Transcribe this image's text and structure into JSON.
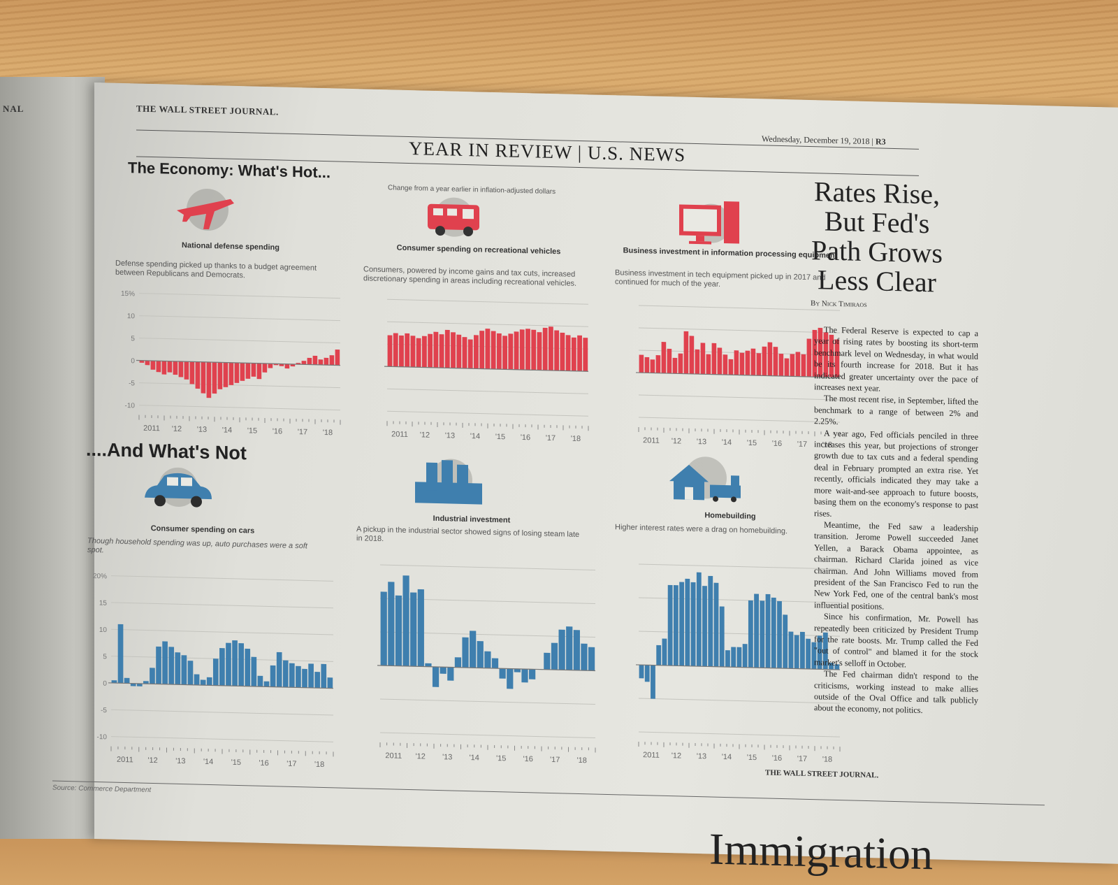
{
  "left_page": {
    "masthead": "NAL"
  },
  "page": {
    "paper": "THE WALL STREET JOURNAL.",
    "date": "Wednesday, December 19, 2018",
    "page_num": "R3",
    "section": "YEAR IN REVIEW | U.S. NEWS",
    "hot_title": "The Economy: What's Hot...",
    "not_title": "....And What's Not",
    "chart_note": "Change from a year earlier in inflation-adjusted dollars",
    "source": "Source: Commerce Department",
    "credit": "THE WALL STREET JOURNAL.",
    "next_headline": "Immigration"
  },
  "colors": {
    "hot": "#e0414e",
    "not": "#3f7fae",
    "paper": "#e2e2dc"
  },
  "panels": [
    {
      "id": "defense",
      "icon": "airplane-icon",
      "title": "National defense spending",
      "desc": "Defense spending picked up thanks to a budget agreement between Republicans and Democrats."
    },
    {
      "id": "rv",
      "icon": "rv-icon",
      "title": "Consumer spending on recreational vehicles",
      "desc": "Consumers, powered by income gains and tax cuts, increased discretionary spending in areas including recreational vehicles."
    },
    {
      "id": "tech",
      "icon": "computer-icon",
      "title": "Business investment in information processing equipment",
      "desc": "Business investment in tech equipment picked up in 2017 and continued for much of the year."
    },
    {
      "id": "cars",
      "icon": "car-icon",
      "title": "Consumer spending on cars",
      "desc": "Though household spending was up, auto purchases were a soft spot."
    },
    {
      "id": "industrial",
      "icon": "factory-icon",
      "title": "Industrial investment",
      "desc": "A pickup in the industrial sector showed signs of losing steam late in 2018."
    },
    {
      "id": "home",
      "icon": "house-icon",
      "title": "Homebuilding",
      "desc": "Higher interest rates were a drag on homebuilding."
    }
  ],
  "chart_data": [
    {
      "type": "bar",
      "title": "National defense spending",
      "color": "#e0414e",
      "yticks": [
        "15%",
        "10",
        "5",
        "0",
        "-5",
        "-10"
      ],
      "ylim": [
        -10,
        15
      ],
      "xticks": [
        "2011",
        "'12",
        "'13",
        "'14",
        "'15",
        "'16",
        "'17",
        "'18"
      ],
      "values": [
        -0.5,
        -1,
        -2,
        -2.5,
        -3,
        -2.5,
        -3,
        -3.5,
        -4,
        -5,
        -6,
        -7,
        -8,
        -7,
        -6,
        -5.5,
        -5,
        -4.5,
        -4,
        -3.5,
        -3,
        -3.5,
        -2,
        -1,
        -0.3,
        -0.5,
        -1,
        -0.5,
        0.3,
        0.8,
        1.5,
        2,
        1.2,
        1.6,
        2.2,
        3.5
      ]
    },
    {
      "type": "bar",
      "title": "Consumer spending on recreational vehicles",
      "color": "#e0414e",
      "xticks": [
        "2011",
        "'12",
        "'13",
        "'14",
        "'15",
        "'16",
        "'17",
        "'18"
      ],
      "values": [
        7,
        7.5,
        7,
        7.5,
        7,
        6.5,
        7,
        7.5,
        8,
        7.5,
        8.5,
        8,
        7.5,
        7,
        6.5,
        7.5,
        8.5,
        9,
        8.5,
        8,
        7.5,
        8,
        8.5,
        9,
        9.2,
        9,
        8.5,
        9.5,
        9.8,
        9,
        8.5,
        8,
        7.5,
        8,
        7.5
      ]
    },
    {
      "type": "bar",
      "title": "Business investment in information processing equipment",
      "color": "#e0414e",
      "xticks": [
        "2011",
        "'12",
        "'13",
        "'14",
        "'15",
        "'16",
        "'17",
        "'18"
      ],
      "values": [
        4,
        3.5,
        3,
        4,
        7,
        5.5,
        3.5,
        4.5,
        9.5,
        8.5,
        5.5,
        7,
        4.5,
        7,
        6,
        4.5,
        3.5,
        5.5,
        5,
        5.5,
        6,
        5,
        6.5,
        7.5,
        6.5,
        5,
        4,
        5,
        5.5,
        5,
        8.5,
        10.5,
        11,
        10,
        9.5,
        8.5
      ]
    },
    {
      "type": "bar",
      "title": "Consumer spending on cars",
      "color": "#3f7fae",
      "yticks": [
        "20%",
        "15",
        "10",
        "5",
        "0",
        "-5",
        "-10"
      ],
      "ylim": [
        -10,
        20
      ],
      "xticks": [
        "2011",
        "'12",
        "'13",
        "'14",
        "'15",
        "'16",
        "'17",
        "'18"
      ],
      "values": [
        0.5,
        11,
        1,
        -0.5,
        -0.5,
        0.5,
        3,
        7,
        8,
        7,
        6,
        5.5,
        4.5,
        2,
        1,
        1.5,
        5,
        7,
        8,
        8.5,
        8,
        7,
        5.5,
        2,
        1,
        4,
        6.5,
        5,
        4.5,
        4,
        3.5,
        4.5,
        3,
        4.5,
        2
      ]
    },
    {
      "type": "bar",
      "title": "Industrial investment",
      "color": "#3f7fae",
      "xticks": [
        "2011",
        "'12",
        "'13",
        "'14",
        "'15",
        "'16",
        "'17",
        "'18"
      ],
      "values": [
        11,
        12.5,
        10.5,
        13.5,
        11,
        11.5,
        0.5,
        -3,
        -1,
        -2,
        1.5,
        4.5,
        5.5,
        4,
        2.5,
        1.5,
        -1.5,
        -3,
        -0.5,
        -2,
        -1.5,
        0,
        2.5,
        4,
        6,
        6.5,
        6,
        4,
        3.5
      ]
    },
    {
      "type": "bar",
      "title": "Homebuilding",
      "color": "#3f7fae",
      "xticks": [
        "2011",
        "'12",
        "'13",
        "'14",
        "'15",
        "'16",
        "'17",
        "'18"
      ],
      "values": [
        -2,
        -2.5,
        -5,
        3,
        4,
        12,
        12,
        12.5,
        13,
        12.5,
        14,
        12,
        13.5,
        12.5,
        9,
        2.5,
        3,
        3,
        3.5,
        10,
        11,
        10,
        11,
        10.5,
        10,
        8,
        5.5,
        5,
        5.5,
        4.5,
        4,
        5,
        5.5,
        1,
        0.8
      ]
    }
  ],
  "article": {
    "headline": "Rates Rise, But Fed's Path Grows Less Clear",
    "byline": "By Nick Timiraos",
    "paragraphs": [
      "The Federal Reserve is expected to cap a year of rising rates by boosting its short-term benchmark level on Wednesday, in what would be its fourth increase for 2018. But it has indicated greater uncertainty over the pace of increases next year.",
      "The most recent rise, in September, lifted the benchmark to a range of between 2% and 2.25%.",
      "A year ago, Fed officials penciled in three increases this year, but projections of stronger growth due to tax cuts and a federal spending deal in February prompted an extra rise. Yet recently, officials indicated they may take a more wait-and-see approach to future boosts, basing them on the economy's response to past rises.",
      "Meantime, the Fed saw a leadership transition. Jerome Powell succeeded Janet Yellen, a Barack Obama appointee, as chairman. Richard Clarida joined as vice chairman. And John Williams moved from president of the San Francisco Fed to run the New York Fed, one of the central bank's most influential positions.",
      "Since his confirmation, Mr. Powell has repeatedly been criticized by President Trump for the rate boosts. Mr. Trump called the Fed \"out of control\" and blamed it for the stock market's selloff in October.",
      "The Fed chairman didn't respond to the criticisms, working instead to make allies outside of the Oval Office and talk publicly about the economy, not politics."
    ]
  }
}
